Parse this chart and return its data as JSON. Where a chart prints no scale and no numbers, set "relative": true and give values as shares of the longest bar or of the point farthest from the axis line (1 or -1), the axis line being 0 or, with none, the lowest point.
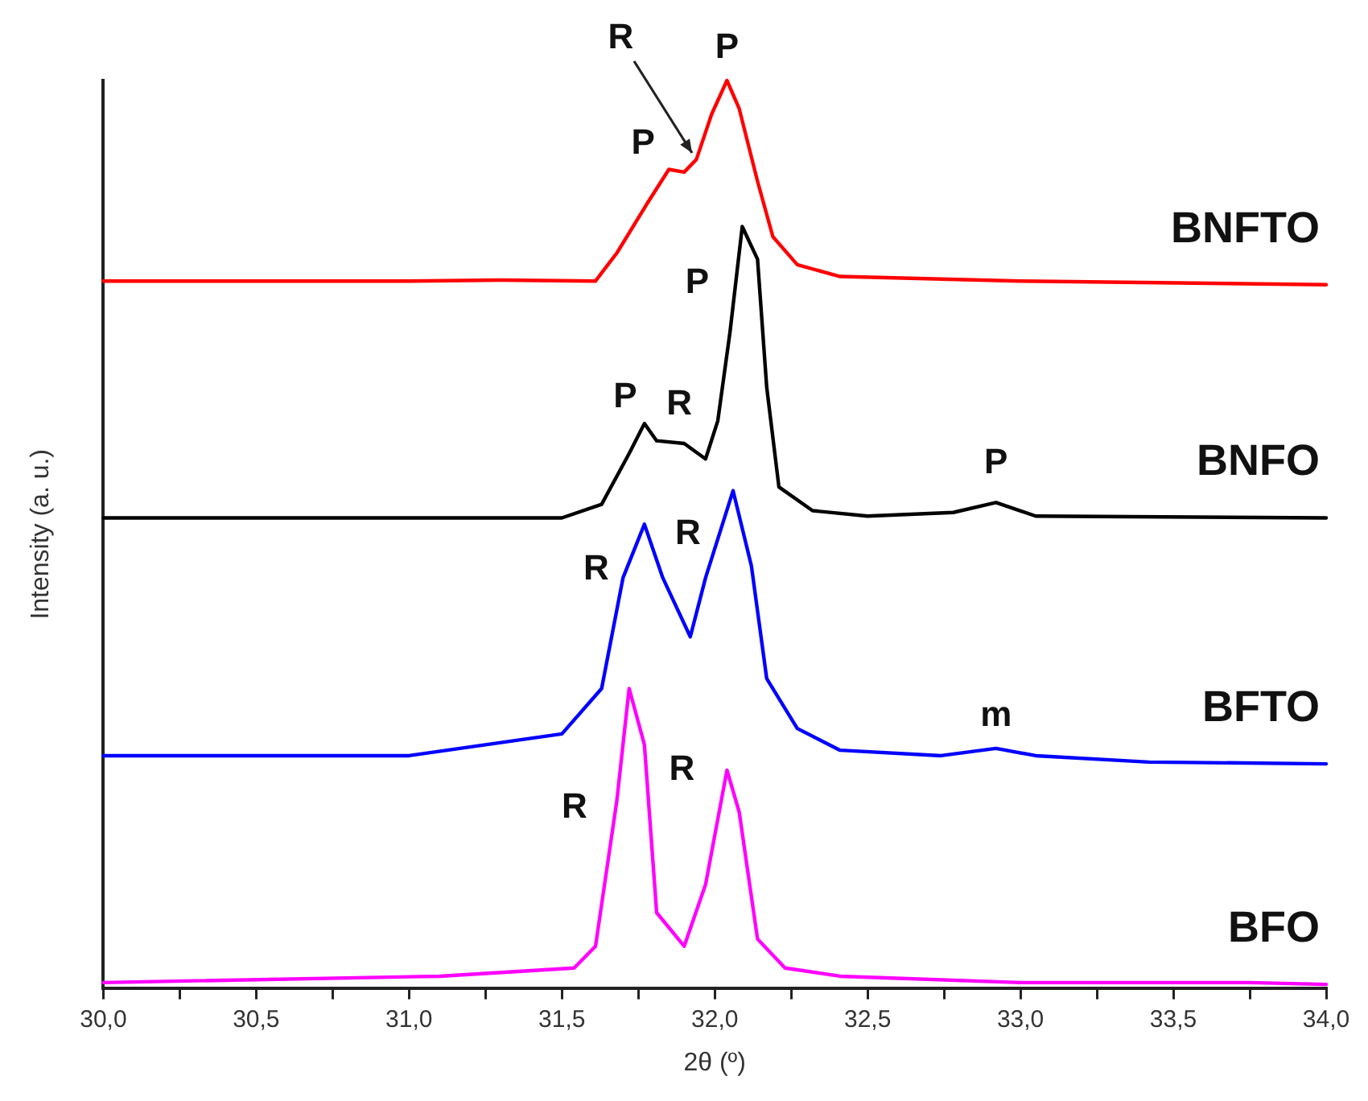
{
  "chart_data": {
    "type": "line",
    "relative": true,
    "xlabel": "2θ (º)",
    "ylabel": "Intensity (a. u.)",
    "xlim": [
      30,
      34
    ],
    "xticks": [
      {
        "value": 30,
        "label": "30,0"
      },
      {
        "value": 30.25,
        "label": null
      },
      {
        "value": 30.5,
        "label": "30,5"
      },
      {
        "value": 30.75,
        "label": null
      },
      {
        "value": 31,
        "label": "31,0"
      },
      {
        "value": 31.25,
        "label": null
      },
      {
        "value": 31.5,
        "label": "31,5"
      },
      {
        "value": 31.75,
        "label": null
      },
      {
        "value": 32,
        "label": "32,0"
      },
      {
        "value": 32.25,
        "label": null
      },
      {
        "value": 32.5,
        "label": "32,5"
      },
      {
        "value": 32.75,
        "label": null
      },
      {
        "value": 33,
        "label": "33,0"
      },
      {
        "value": 33.25,
        "label": null
      },
      {
        "value": 33.5,
        "label": "33,5"
      },
      {
        "value": 33.75,
        "label": null
      },
      {
        "value": 34,
        "label": "34,0"
      }
    ],
    "tick_labels": "x",
    "grid": false,
    "legend": false,
    "marker": "none",
    "line_style": "solid",
    "series": [
      {
        "name": "BNFTO",
        "color": "#ff0000",
        "x": [
          30,
          31,
          31.3,
          31.61,
          31.68,
          31.78,
          31.85,
          31.9,
          31.94,
          31.99,
          32.04,
          32.08,
          32.14,
          32.19,
          32.27,
          32.41,
          33,
          34
        ],
        "values": [
          0.779,
          0.779,
          0.78,
          0.779,
          0.81,
          0.865,
          0.902,
          0.899,
          0.913,
          0.963,
          1,
          0.969,
          0.889,
          0.828,
          0.797,
          0.784,
          0.779,
          0.775
        ]
      },
      {
        "name": "BNFO",
        "color": "#000000",
        "x": [
          30,
          31,
          31.5,
          31.63,
          31.72,
          31.77,
          31.81,
          31.9,
          31.97,
          32.01,
          32.05,
          32.09,
          32.14,
          32.17,
          32.21,
          32.32,
          32.5,
          32.78,
          32.92,
          33.05,
          34
        ],
        "values": [
          0.518,
          0.518,
          0.518,
          0.533,
          0.589,
          0.622,
          0.603,
          0.6,
          0.583,
          0.625,
          0.723,
          0.839,
          0.803,
          0.662,
          0.552,
          0.526,
          0.52,
          0.524,
          0.535,
          0.52,
          0.518
        ]
      },
      {
        "name": "BFTO",
        "color": "#0000ff",
        "x": [
          30,
          31,
          31.5,
          31.63,
          31.7,
          31.77,
          31.83,
          31.92,
          31.97,
          32.06,
          32.12,
          32.17,
          32.27,
          32.41,
          32.74,
          32.92,
          33.05,
          33.42,
          34
        ],
        "values": [
          0.256,
          0.256,
          0.28,
          0.33,
          0.452,
          0.511,
          0.452,
          0.387,
          0.452,
          0.548,
          0.465,
          0.341,
          0.286,
          0.262,
          0.256,
          0.264,
          0.256,
          0.249,
          0.247
        ]
      },
      {
        "name": "BFO",
        "color": "#ff00ff",
        "x": [
          30,
          31.1,
          31.54,
          31.61,
          31.68,
          31.72,
          31.77,
          31.81,
          31.9,
          31.97,
          32.04,
          32.08,
          32.14,
          32.23,
          32.41,
          33,
          33.75,
          34
        ],
        "values": [
          0.006,
          0.013,
          0.022,
          0.046,
          0.207,
          0.33,
          0.268,
          0.083,
          0.046,
          0.114,
          0.24,
          0.194,
          0.054,
          0.022,
          0.013,
          0.006,
          0.006,
          0.004
        ]
      }
    ],
    "annotations": [
      {
        "text": "P",
        "x": 32.04,
        "y": 1
      },
      {
        "text": "R",
        "x": 31.94,
        "y": 0.913
      },
      {
        "text": "P",
        "x": 31.85,
        "y": 0.902
      },
      {
        "text": "P",
        "x": 32.09,
        "y": 0.839
      },
      {
        "text": "P",
        "x": 31.77,
        "y": 0.622
      },
      {
        "text": "R",
        "x": 31.9,
        "y": 0.6
      },
      {
        "text": "P",
        "x": 32.92,
        "y": 0.535
      },
      {
        "text": "R",
        "x": 31.77,
        "y": 0.511
      },
      {
        "text": "R",
        "x": 32.06,
        "y": 0.548
      },
      {
        "text": "m",
        "x": 32.92,
        "y": 0.264
      },
      {
        "text": "R",
        "x": 31.72,
        "y": 0.33
      },
      {
        "text": "R",
        "x": 32.04,
        "y": 0.24
      }
    ]
  }
}
